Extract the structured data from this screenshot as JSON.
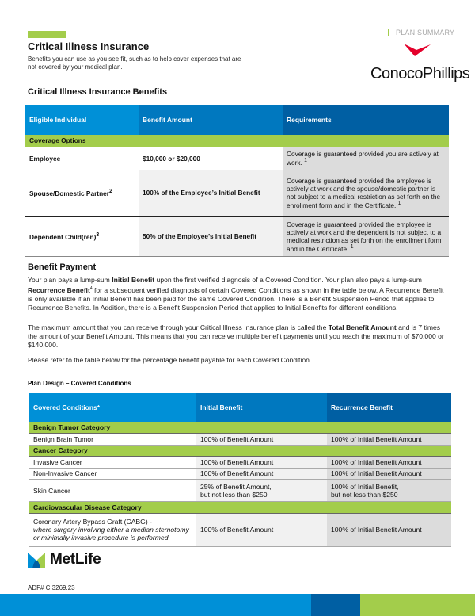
{
  "header": {
    "title": "Critical Illness Insurance",
    "subtitle": "Benefits you can use as you see fit, such as to help cover expenses that are not covered by your medical plan.",
    "plan_label": "PLAN SUMMARY",
    "employer_logo": "ConocoPhillips"
  },
  "benefits": {
    "heading": "Critical Illness Insurance Benefits",
    "columns": [
      "Eligible Individual",
      "Benefit Amount",
      "Requirements"
    ],
    "section": "Coverage Options",
    "rows": [
      {
        "who": "Employee",
        "sup": "",
        "amount": "$10,000 or $20,000",
        "req": "Coverage is guaranteed provided you are actively at work.",
        "req_sup": "1"
      },
      {
        "who": "Spouse/Domestic Partner",
        "sup": "2",
        "amount": "100% of the Employee’s Initial Benefit",
        "req": "Coverage is guaranteed provided the employee is actively at work and the spouse/domestic partner is not subject to a medical restriction as set forth on the enrollment form and in the Certificate.",
        "req_sup": "1"
      },
      {
        "who": "Dependent Child(ren)",
        "sup": "3",
        "amount": "50% of the Employee’s Initial Benefit",
        "req": "Coverage is guaranteed provided the employee is actively at work and the dependent is not subject to a medical restriction as set forth on the enrollment form and in the Certificate.",
        "req_sup": "1"
      }
    ]
  },
  "payment": {
    "heading": "Benefit Payment",
    "p1_a": "Your plan pays a lump-sum ",
    "p1_b": "Initial Benefit",
    "p1_c": " upon the first verified diagnosis of a Covered Condition. Your plan also pays a lump-sum ",
    "p1_d": "Recurrence Benefit",
    "p1_sup": "4",
    "p1_e": " for a subsequent verified diagnosis of certain Covered Conditions as shown in the table below. A Recurrence Benefit is only available if an Initial Benefit has been paid for the same Covered Condition. There is a Benefit Suspension Period that applies to Recurrence Benefits. In Addition, there is a Benefit Suspension Period that applies to Initial Benefits for different conditions.",
    "p2_a": "The maximum amount that you can receive through your Critical Illness Insurance plan is called the ",
    "p2_b": "Total Benefit Amount",
    "p2_c": " and is 7 times the amount of your Benefit Amount. This means that you can receive multiple benefit payments until you reach the maximum of $70,000 or $140,000.",
    "p3": "Please refer to the table below for the percentage benefit payable for each Covered Condition."
  },
  "conditions": {
    "heading": "Plan Design – Covered Conditions",
    "columns": [
      "Covered Conditions*",
      "Initial Benefit",
      "Recurrence Benefit"
    ],
    "cat1": "Benign Tumor Category",
    "r1": [
      "Benign Brain Tumor",
      "100% of Benefit Amount",
      "100% of Initial Benefit Amount"
    ],
    "cat2": "Cancer Category",
    "r2": [
      "Invasive Cancer",
      "100% of Benefit Amount",
      "100% of Initial Benefit Amount"
    ],
    "r3": [
      "Non-Invasive Cancer",
      "100% of Benefit Amount",
      "100% of Initial Benefit Amount"
    ],
    "r4": [
      "Skin Cancer",
      "25% of Benefit Amount,",
      "but not less than $250",
      "100% of Initial Benefit,",
      "but not less than $250"
    ],
    "cat3": "Cardiovascular Disease Category",
    "r5": [
      "Coronary Artery Bypass Graft (CABG) -",
      "where surgery involving either a median sternotomy or minimally invasive procedure is performed",
      "100% of Benefit Amount",
      "100% of Initial Benefit Amount"
    ]
  },
  "footer": {
    "insurer_logo": "MetLife",
    "code": "ADF# CI3269.23"
  },
  "colors": {
    "green": "#a3cd4b",
    "blue": "#0090d7",
    "mid_blue": "#0078bf",
    "dark_blue": "#005fa3",
    "logo_red": "#e4002b"
  }
}
